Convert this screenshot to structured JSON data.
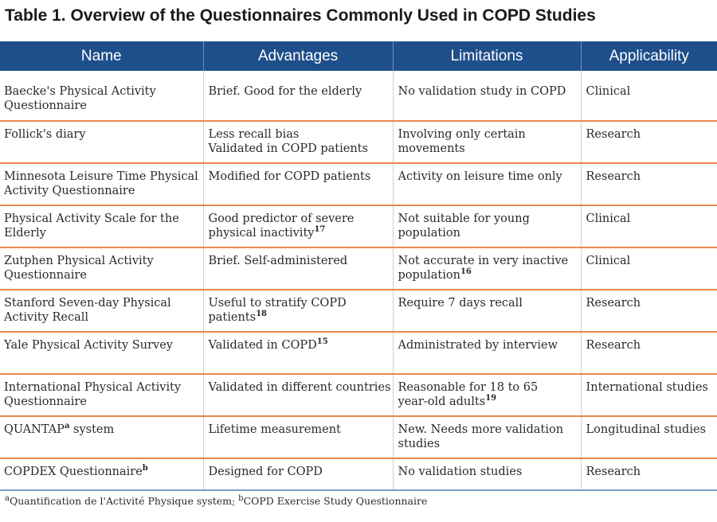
{
  "title": "Table 1. Overview of the Questionnaires Commonly Used in COPD Studies",
  "colors": {
    "header_bg": "#1e4f8b",
    "row_separator": "#e8884f",
    "last_separator": "#7f9fc9"
  },
  "columns": [
    "Name",
    "Advantages",
    "Limitations",
    "Applicability"
  ],
  "rows": [
    {
      "name": [
        "Baecke's Physical Activity",
        "Questionnaire"
      ],
      "advantages": [
        "Brief. Good for the elderly"
      ],
      "limitations": [
        "No validation study in COPD"
      ],
      "applicability": "Clinical"
    },
    {
      "name": [
        "Follick's diary"
      ],
      "advantages": [
        "Less recall bias",
        "Validated in COPD patients"
      ],
      "limitations": [
        "Involving only certain",
        "movements"
      ],
      "applicability": "Research"
    },
    {
      "name": [
        "Minnesota Leisure Time Physical",
        "Activity Questionnaire"
      ],
      "advantages": [
        "Modified for COPD patients"
      ],
      "limitations": [
        "Activity on leisure time only"
      ],
      "applicability": "Research"
    },
    {
      "name": [
        "Physical Activity Scale for the",
        "Elderly"
      ],
      "advantages": [
        "Good predictor of severe",
        "physical inactivity"
      ],
      "advantages_sup": "17",
      "limitations": [
        "Not suitable for young",
        "population"
      ],
      "applicability": "Clinical"
    },
    {
      "name": [
        "Zutphen Physical Activity",
        "Questionnaire"
      ],
      "advantages": [
        "Brief. Self-administered"
      ],
      "limitations": [
        "Not accurate in very inactive",
        "population"
      ],
      "limitations_sup": "16",
      "applicability": "Clinical"
    },
    {
      "name": [
        "Stanford Seven-day Physical",
        "Activity Recall"
      ],
      "advantages": [
        "Useful to stratify COPD",
        "patients"
      ],
      "advantages_sup": "18",
      "limitations": [
        "Require 7 days recall"
      ],
      "applicability": "Research"
    },
    {
      "name": [
        "Yale Physical Activity Survey"
      ],
      "advantages": [
        "Validated in COPD"
      ],
      "advantages_sup": "15",
      "limitations": [
        "Administrated by interview"
      ],
      "applicability": "Research"
    },
    {
      "name": [
        "International Physical Activity",
        "Questionnaire"
      ],
      "advantages": [
        "Validated in different countries"
      ],
      "limitations": [
        "Reasonable for 18 to 65",
        "year-old adults"
      ],
      "limitations_sup": "19",
      "applicability": "International studies"
    },
    {
      "name": [
        "QUANTAP",
        " system"
      ],
      "name_sup": "a",
      "advantages": [
        "Lifetime measurement"
      ],
      "limitations": [
        "New. Needs more validation",
        "studies"
      ],
      "applicability": "Longitudinal studies"
    },
    {
      "name": [
        "COPDEX Questionnaire"
      ],
      "name_sup": "b",
      "advantages": [
        "Designed for COPD"
      ],
      "limitations": [
        "No validation studies"
      ],
      "applicability": "Research"
    }
  ],
  "footnote": {
    "a_mark": "a",
    "a_text": "Quantification de l'Activité Physique system; ",
    "b_mark": "b",
    "b_text": "COPD Exercise Study Questionnaire"
  }
}
